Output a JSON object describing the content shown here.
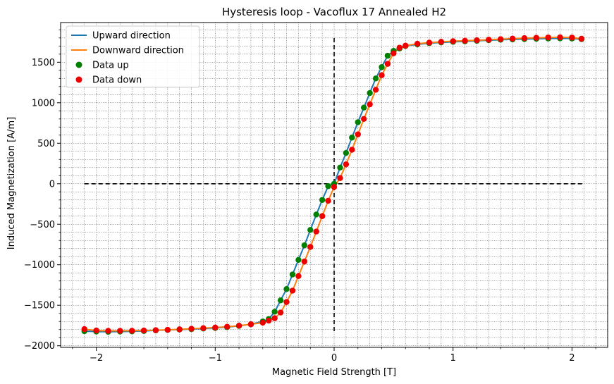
{
  "chart_data": {
    "type": "line",
    "title": "Hysteresis loop - Vacoflux 17 Annealed H2",
    "xlabel": "Magnetic Field Strength [T]",
    "ylabel": "Induced Magnetization [A/m]",
    "xlim": [
      -2.3,
      2.3
    ],
    "ylim": [
      -2020,
      1990
    ],
    "xticks": [
      -2,
      -1,
      0,
      1,
      2
    ],
    "xtick_labels": [
      "−2",
      "−1",
      "0",
      "1",
      "2"
    ],
    "yticks": [
      -2000,
      -1500,
      -1000,
      -500,
      0,
      500,
      1000,
      1500
    ],
    "ytick_labels": [
      "−2000",
      "−1500",
      "−1000",
      "−500",
      "0",
      "500",
      "1000",
      "1500"
    ],
    "grid": true,
    "legend_position": "top-left",
    "legend": [
      {
        "label": "Upward direction",
        "kind": "line",
        "color": "#1f77b4"
      },
      {
        "label": "Downward direction",
        "kind": "line",
        "color": "#ff7f0e"
      },
      {
        "label": "Data up",
        "kind": "marker",
        "color": "#008000"
      },
      {
        "label": "Data down",
        "kind": "marker",
        "color": "#ee0000"
      }
    ],
    "reference_lines": {
      "horizontal": {
        "y": 0,
        "x_from": -2.1,
        "x_to": 2.1
      },
      "vertical": {
        "x": 0,
        "y_from": -1820,
        "y_to": 1800
      }
    },
    "series": [
      {
        "name": "Upward direction",
        "color": "#1f77b4",
        "x": [
          -2.1,
          -2.0,
          -1.9,
          -1.8,
          -1.7,
          -1.6,
          -1.5,
          -1.4,
          -1.3,
          -1.2,
          -1.1,
          -1.0,
          -0.9,
          -0.8,
          -0.7,
          -0.6,
          -0.55,
          -0.5,
          -0.45,
          -0.4,
          -0.35,
          -0.3,
          -0.25,
          -0.2,
          -0.15,
          -0.1,
          -0.05,
          0,
          0.05,
          0.1,
          0.15,
          0.2,
          0.25,
          0.3,
          0.35,
          0.4,
          0.45,
          0.5,
          0.55,
          0.6,
          0.7,
          0.8,
          0.9,
          1.0,
          1.1,
          1.2,
          1.3,
          1.4,
          1.5,
          1.6,
          1.7,
          1.8,
          1.9,
          2.0,
          2.08
        ],
        "y": [
          -1820,
          -1825,
          -1828,
          -1825,
          -1822,
          -1818,
          -1810,
          -1805,
          -1800,
          -1795,
          -1788,
          -1780,
          -1770,
          -1755,
          -1735,
          -1700,
          -1670,
          -1580,
          -1440,
          -1300,
          -1120,
          -940,
          -760,
          -570,
          -380,
          -200,
          -30,
          0,
          200,
          380,
          570,
          760,
          940,
          1120,
          1300,
          1440,
          1580,
          1640,
          1670,
          1700,
          1720,
          1735,
          1745,
          1752,
          1758,
          1765,
          1772,
          1778,
          1782,
          1786,
          1790,
          1793,
          1795,
          1793,
          1785
        ]
      },
      {
        "name": "Downward direction",
        "color": "#ff7f0e",
        "x": [
          2.08,
          2.0,
          1.9,
          1.8,
          1.7,
          1.6,
          1.5,
          1.4,
          1.3,
          1.2,
          1.1,
          1.0,
          0.9,
          0.8,
          0.7,
          0.6,
          0.55,
          0.5,
          0.45,
          0.4,
          0.35,
          0.3,
          0.25,
          0.2,
          0.15,
          0.1,
          0.05,
          0,
          -0.05,
          -0.1,
          -0.15,
          -0.2,
          -0.25,
          -0.3,
          -0.35,
          -0.4,
          -0.45,
          -0.5,
          -0.55,
          -0.6,
          -0.7,
          -0.8,
          -0.9,
          -1.0,
          -1.1,
          -1.2,
          -1.3,
          -1.4,
          -1.5,
          -1.6,
          -1.7,
          -1.8,
          -1.9,
          -2.0,
          -2.1
        ],
        "y": [
          1790,
          1805,
          1808,
          1806,
          1802,
          1798,
          1792,
          1785,
          1778,
          1772,
          1766,
          1760,
          1752,
          1742,
          1728,
          1705,
          1680,
          1610,
          1480,
          1340,
          1160,
          980,
          800,
          610,
          420,
          240,
          70,
          -40,
          -210,
          -400,
          -590,
          -780,
          -960,
          -1140,
          -1320,
          -1460,
          -1590,
          -1660,
          -1690,
          -1715,
          -1735,
          -1752,
          -1765,
          -1775,
          -1783,
          -1790,
          -1797,
          -1803,
          -1808,
          -1812,
          -1815,
          -1816,
          -1816,
          -1812,
          -1795
        ]
      }
    ]
  }
}
